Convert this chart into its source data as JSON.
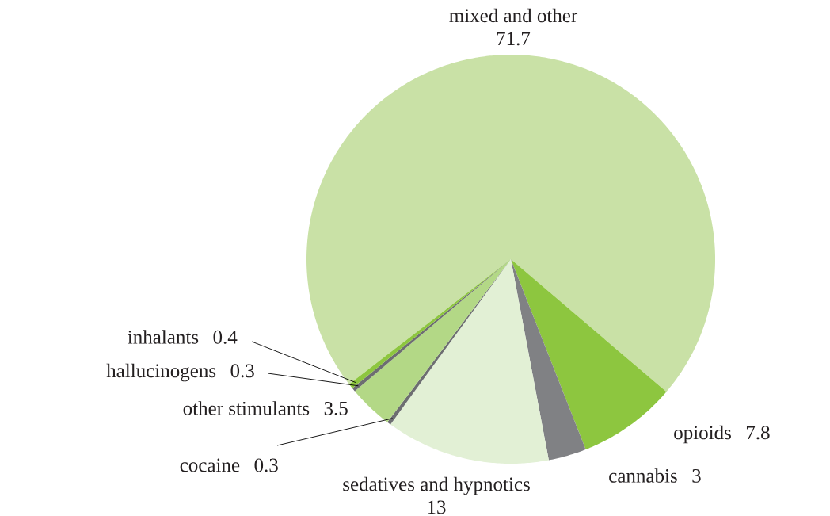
{
  "chart_data": {
    "type": "pie",
    "categories": [
      "mixed and other",
      "opioids",
      "cannabis",
      "sedatives and hypnotics",
      "cocaine",
      "other stimulants",
      "hallucinogens",
      "inhalants"
    ],
    "values": [
      71.7,
      7.8,
      3,
      13,
      0.3,
      3.5,
      0.3,
      0.4
    ],
    "colors": [
      "#c9e1a6",
      "#8dc63f",
      "#808184",
      "#e2f0d5",
      "#6d6e71",
      "#b3d886",
      "#6d6e71",
      "#8dc63f"
    ],
    "data_labels": true
  }
}
